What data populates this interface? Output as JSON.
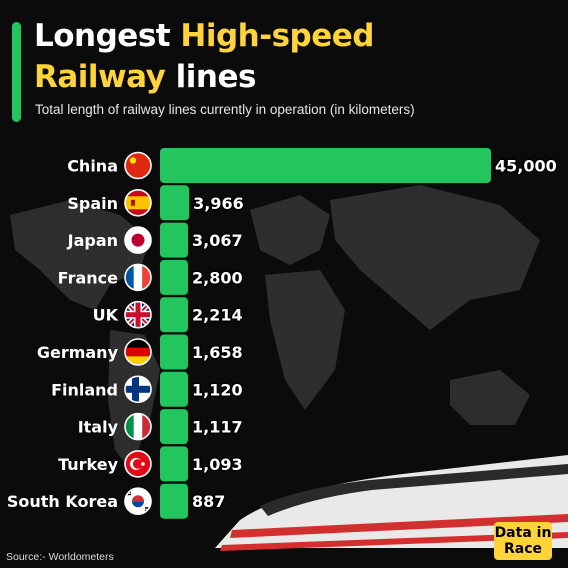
{
  "header": {
    "title_part1": "Longest ",
    "title_highlight1": "High-speed",
    "title_highlight2": "Railway",
    "title_part2": " lines",
    "subtitle": "Total length of railway lines currently in operation (in kilometers)"
  },
  "footer": {
    "source": "Source:- Worldometers",
    "logo_line1": "Data in",
    "logo_line2": "Race"
  },
  "colors": {
    "bar": "#22c55e",
    "title_highlight": "#ffd43b",
    "background": "#0b0b0b"
  },
  "chart_data": {
    "type": "bar",
    "orientation": "horizontal",
    "categories": [
      "China",
      "Spain",
      "Japan",
      "France",
      "UK",
      "Germany",
      "Finland",
      "Italy",
      "Turkey",
      "South Korea"
    ],
    "values": [
      45000,
      3966,
      3067,
      2800,
      2214,
      1658,
      1120,
      1117,
      1093,
      887
    ],
    "value_labels": [
      "45,000",
      "3,966",
      "3,067",
      "2,800",
      "2,214",
      "1,658",
      "1,120",
      "1,117",
      "1,093",
      "887"
    ],
    "flags": [
      "china-flag",
      "spain-flag",
      "japan-flag",
      "france-flag",
      "uk-flag",
      "germany-flag",
      "finland-flag",
      "italy-flag",
      "turkey-flag",
      "south-korea-flag"
    ],
    "title": "Longest High-speed Railway lines",
    "xlabel": "",
    "ylabel": ""
  }
}
